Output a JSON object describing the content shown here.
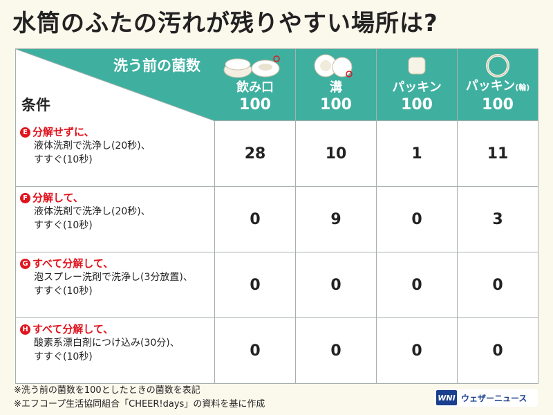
{
  "title": "水筒のふたの汚れが残りやすい場所は?",
  "header": {
    "corner_title": "洗う前の菌数",
    "corner_condition": "条件"
  },
  "columns": [
    {
      "label": "飲み口",
      "label_suffix": "",
      "count": "100",
      "icon": "bottle-cap-drinking-spout-icon"
    },
    {
      "label": "溝",
      "label_suffix": "",
      "count": "100",
      "icon": "bottle-cap-groove-icon"
    },
    {
      "label": "パッキン",
      "label_suffix": "",
      "count": "100",
      "icon": "packing-square-icon"
    },
    {
      "label": "パッキン",
      "label_suffix": "(輪)",
      "count": "100",
      "icon": "packing-ring-icon"
    }
  ],
  "rows": [
    {
      "badge": "E",
      "line1": "分解せずに、",
      "line2": "液体洗剤で洗浄し(20秒)、",
      "line3": "すすぐ(10秒)",
      "values": [
        "28",
        "10",
        "1",
        "11"
      ]
    },
    {
      "badge": "F",
      "line1": "分解して、",
      "line2": "液体洗剤で洗浄し(20秒)、",
      "line3": "すすぐ(10秒)",
      "values": [
        "0",
        "9",
        "0",
        "3"
      ]
    },
    {
      "badge": "G",
      "line1": "すべて分解して、",
      "line2": "泡スプレー洗剤で洗浄し(3分放置)、",
      "line3": "すすぐ(10秒)",
      "values": [
        "0",
        "0",
        "0",
        "0"
      ]
    },
    {
      "badge": "H",
      "line1": "すべて分解して、",
      "line2": "酸素系漂白剤につけ込み(30分)、",
      "line3": "すすぐ(10秒)",
      "values": [
        "0",
        "0",
        "0",
        "0"
      ]
    }
  ],
  "notes": [
    "※洗う前の菌数を100としたときの菌数を表記",
    "※エフコープ生活協同組合「CHEER!days」の資料を基に作成"
  ],
  "logo": {
    "mark": "WNI",
    "text": "ウェザーニュース"
  },
  "colors": {
    "header_teal": "#3fb0a0",
    "accent_red": "#e0141e",
    "background": "#fbf8ec",
    "logo_blue": "#1a3f8f"
  },
  "chart_data": {
    "type": "table",
    "title": "水筒のふたの汚れが残りやすい場所は?",
    "columns": [
      "飲み口",
      "溝",
      "パッキン",
      "パッキン(輪)"
    ],
    "baseline": [
      100,
      100,
      100,
      100
    ],
    "rows": [
      {
        "condition": "分解せずに、液体洗剤で洗浄し(20秒)、すすぐ(10秒)",
        "values": [
          28,
          10,
          1,
          11
        ]
      },
      {
        "condition": "分解して、液体洗剤で洗浄し(20秒)、すすぐ(10秒)",
        "values": [
          0,
          9,
          0,
          3
        ]
      },
      {
        "condition": "すべて分解して、泡スプレー洗剤で洗浄し(3分放置)、すすぐ(10秒)",
        "values": [
          0,
          0,
          0,
          0
        ]
      },
      {
        "condition": "すべて分解して、酸素系漂白剤につけ込み(30分)、すすぐ(10秒)",
        "values": [
          0,
          0,
          0,
          0
        ]
      }
    ]
  }
}
